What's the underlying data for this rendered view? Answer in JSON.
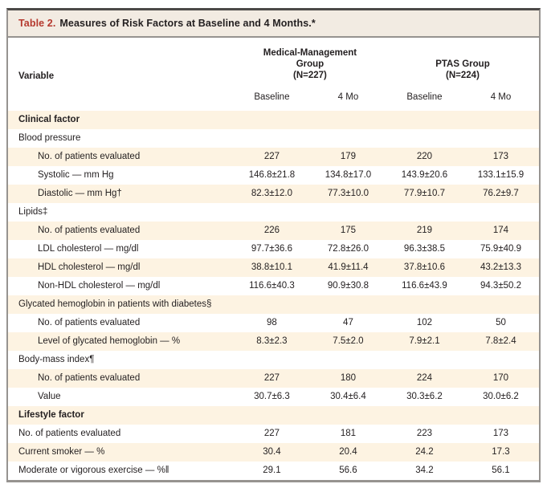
{
  "theme": {
    "accent-red": "#b5392e",
    "title-bar-bg": "#f2ebe2",
    "stripe-bg": "#fdf3e2",
    "border-dark": "#4c4a48",
    "border-gray": "#969390",
    "text": "#231f20"
  },
  "title": {
    "label": "Table 2.",
    "text": "Measures of Risk Factors at Baseline and 4 Months.*"
  },
  "header": {
    "variable_label": "Variable",
    "groups": [
      {
        "name": "Medical-Management\nGroup\n(N=227)"
      },
      {
        "name": "PTAS Group\n(N=224)"
      }
    ],
    "subcolumns": [
      "Baseline",
      "4 Mo",
      "Baseline",
      "4 Mo"
    ]
  },
  "rows": [
    {
      "label": "Clinical factor",
      "type": "section",
      "indent": 0,
      "values": []
    },
    {
      "label": "Blood pressure",
      "type": "category",
      "indent": 0,
      "values": []
    },
    {
      "label": "No. of patients evaluated",
      "type": "data",
      "indent": 1,
      "values": [
        "227",
        "179",
        "220",
        "173"
      ]
    },
    {
      "label": "Systolic — mm Hg",
      "type": "data",
      "indent": 1,
      "values": [
        "146.8±21.8",
        "134.8±17.0",
        "143.9±20.6",
        "133.1±15.9"
      ]
    },
    {
      "label": "Diastolic — mm Hg†",
      "type": "data",
      "indent": 1,
      "values": [
        "82.3±12.0",
        "77.3±10.0",
        "77.9±10.7",
        "76.2±9.7"
      ]
    },
    {
      "label": "Lipids‡",
      "type": "category",
      "indent": 0,
      "values": []
    },
    {
      "label": "No. of patients evaluated",
      "type": "data",
      "indent": 1,
      "values": [
        "226",
        "175",
        "219",
        "174"
      ]
    },
    {
      "label": "LDL cholesterol — mg/dl",
      "type": "data",
      "indent": 1,
      "values": [
        "97.7±36.6",
        "72.8±26.0",
        "96.3±38.5",
        "75.9±40.9"
      ]
    },
    {
      "label": "HDL cholesterol — mg/dl",
      "type": "data",
      "indent": 1,
      "values": [
        "38.8±10.1",
        "41.9±11.4",
        "37.8±10.6",
        "43.2±13.3"
      ]
    },
    {
      "label": "Non-HDL cholesterol — mg/dl",
      "type": "data",
      "indent": 1,
      "values": [
        "116.6±40.3",
        "90.9±30.8",
        "116.6±43.9",
        "94.3±50.2"
      ]
    },
    {
      "label": "Glycated hemoglobin in patients with diabetes§",
      "type": "category",
      "indent": 0,
      "values": []
    },
    {
      "label": "No. of patients evaluated",
      "type": "data",
      "indent": 1,
      "values": [
        "98",
        "47",
        "102",
        "50"
      ]
    },
    {
      "label": "Level of glycated hemoglobin — %",
      "type": "data",
      "indent": 1,
      "values": [
        "8.3±2.3",
        "7.5±2.0",
        "7.9±2.1",
        "7.8±2.4"
      ]
    },
    {
      "label": "Body-mass index¶",
      "type": "category",
      "indent": 0,
      "values": []
    },
    {
      "label": "No. of patients evaluated",
      "type": "data",
      "indent": 1,
      "values": [
        "227",
        "180",
        "224",
        "170"
      ]
    },
    {
      "label": "Value",
      "type": "data",
      "indent": 1,
      "values": [
        "30.7±6.3",
        "30.4±6.4",
        "30.3±6.2",
        "30.0±6.2"
      ]
    },
    {
      "label": "Lifestyle factor",
      "type": "section",
      "indent": 0,
      "values": []
    },
    {
      "label": "No. of patients evaluated",
      "type": "data",
      "indent": 0,
      "values": [
        "227",
        "181",
        "223",
        "173"
      ]
    },
    {
      "label": "Current smoker — %",
      "type": "data",
      "indent": 0,
      "values": [
        "30.4",
        "20.4",
        "24.2",
        "17.3"
      ]
    },
    {
      "label": "Moderate or vigorous exercise — %‖",
      "type": "data",
      "indent": 0,
      "values": [
        "29.1",
        "56.6",
        "34.2",
        "56.1"
      ]
    }
  ]
}
